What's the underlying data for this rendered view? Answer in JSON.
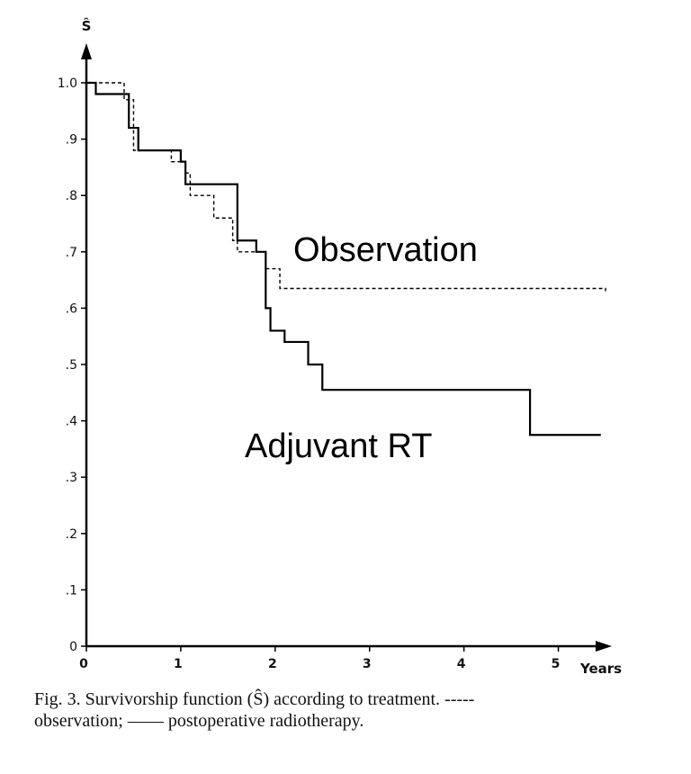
{
  "chart_data": {
    "type": "line",
    "step": true,
    "ylabel": "Ŝ",
    "xlabel": "Years",
    "xlim": [
      0,
      5.5
    ],
    "ylim": [
      0,
      1.0
    ],
    "x_ticks": [
      0,
      1,
      2,
      3,
      4,
      5
    ],
    "x_tick_labels": [
      "0",
      "1",
      "2",
      "3",
      "4",
      "5"
    ],
    "y_ticks": [
      0,
      0.1,
      0.2,
      0.3,
      0.4,
      0.5,
      0.6,
      0.7,
      0.8,
      0.9,
      1.0
    ],
    "y_tick_labels": [
      "0",
      ".1",
      ".2",
      ".3",
      ".4",
      ".5",
      ".6",
      ".7",
      ".8",
      ".9",
      "1.0"
    ],
    "grid": false,
    "series": [
      {
        "name": "observation",
        "style": "dashed",
        "x": [
          0,
          0.4,
          0.5,
          0.9,
          1.05,
          1.1,
          1.35,
          1.55,
          1.6,
          1.9,
          2.05,
          5.5
        ],
        "y": [
          1.0,
          0.97,
          0.88,
          0.86,
          0.84,
          0.8,
          0.76,
          0.72,
          0.7,
          0.67,
          0.635,
          0.63
        ]
      },
      {
        "name": "postoperative radiotherapy",
        "style": "solid",
        "x": [
          0,
          0.1,
          0.45,
          0.55,
          1.0,
          1.05,
          1.6,
          1.8,
          1.9,
          1.95,
          2.1,
          2.35,
          2.5,
          4.7,
          5.45
        ],
        "y": [
          1.0,
          0.98,
          0.92,
          0.88,
          0.86,
          0.82,
          0.72,
          0.7,
          0.6,
          0.56,
          0.54,
          0.5,
          0.455,
          0.375,
          0.375
        ]
      }
    ],
    "annotations": [
      "Observation",
      "Adjuvant RT"
    ]
  },
  "figure": {
    "caption_line1": "Fig. 3. Survivorship function (Ŝ) according to treatment. -----",
    "caption_line2": "observation; —— postoperative radiotherapy."
  }
}
